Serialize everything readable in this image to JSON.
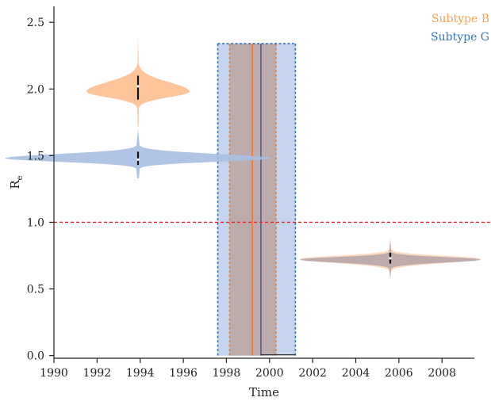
{
  "chart_data": {
    "type": "violin",
    "xlabel": "Time",
    "ylabel_main": "R",
    "ylabel_sub": "e",
    "xlim": [
      1990,
      2009.5
    ],
    "ylim": [
      -0.02,
      2.62
    ],
    "x_ticks": [
      {
        "value": 1990,
        "label": "1990"
      },
      {
        "value": 1992,
        "label": "1992"
      },
      {
        "value": 1994,
        "label": "1994"
      },
      {
        "value": 1996,
        "label": "1996"
      },
      {
        "value": 1998,
        "label": "1998"
      },
      {
        "value": 2000,
        "label": "2000"
      },
      {
        "value": 2002,
        "label": "2002"
      },
      {
        "value": 2004,
        "label": "2004"
      },
      {
        "value": 2006,
        "label": "2006"
      },
      {
        "value": 2008,
        "label": "2008"
      }
    ],
    "y_ticks": [
      {
        "value": 0.0,
        "label": "0.0"
      },
      {
        "value": 0.5,
        "label": "0.5"
      },
      {
        "value": 1.0,
        "label": "1.0"
      },
      {
        "value": 1.5,
        "label": "1.5"
      },
      {
        "value": 2.0,
        "label": "2.0"
      },
      {
        "value": 2.5,
        "label": "2.5"
      }
    ],
    "threshold": {
      "value": 1.0,
      "color": "#e8202a"
    },
    "legend": {
      "position": "top-right"
    },
    "series": [
      {
        "name": "Subtype B",
        "color": "#ff9f4f",
        "fill": "#fdbf8e",
        "band_color": "#ec7e33",
        "violins": [
          {
            "center": 1993.9,
            "half_width": 2.4,
            "median": 2.02,
            "low": 1.92,
            "high": 2.1,
            "y_min": 1.72,
            "y_max": 2.4,
            "y_peak": 1.98,
            "tail_lo": 1.85,
            "tail_hi": 2.2
          },
          {
            "center": 2005.6,
            "half_width": 4.2,
            "median": 0.74,
            "low": 0.69,
            "high": 0.77,
            "y_min": 0.56,
            "y_max": 0.88,
            "y_peak": 0.725,
            "tail_lo": 0.63,
            "tail_hi": 0.8
          }
        ],
        "breakpoint": {
          "median": 1999.2,
          "low": 1998.15,
          "high": 2000.3
        }
      },
      {
        "name": "Subtype G",
        "color": "#3876c0",
        "fill": "#a7bfe3",
        "band_color": "#2e6fb5",
        "violins": [
          {
            "center": 1993.9,
            "half_width": 6.2,
            "median": 1.47,
            "low": 1.43,
            "high": 1.53,
            "y_min": 1.33,
            "y_max": 1.7,
            "y_peak": 1.48,
            "tail_lo": 1.4,
            "tail_hi": 1.58
          },
          {
            "center": 2005.6,
            "half_width": 4.2,
            "median": 0.73,
            "low": 0.7,
            "high": 0.77,
            "y_min": 0.58,
            "y_max": 0.85,
            "y_peak": 0.72,
            "tail_lo": 0.65,
            "tail_hi": 0.78
          }
        ],
        "breakpoint": {
          "median": 1999.6,
          "low": 1997.6,
          "high": 2001.2
        }
      }
    ],
    "band_y_top": 2.34,
    "colors": {
      "axis": "#222222",
      "overlap": "#bdaaa8"
    }
  }
}
